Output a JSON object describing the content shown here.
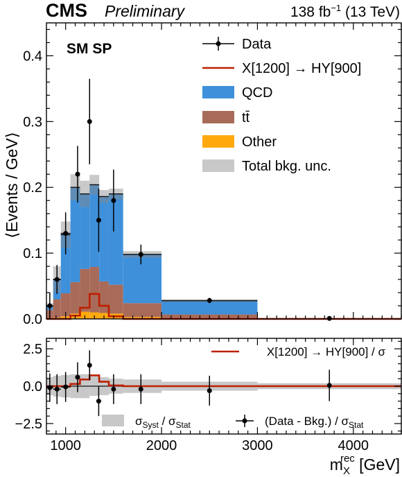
{
  "header": {
    "experiment": "CMS",
    "status": "Preliminary",
    "lumi_value": "138 fb",
    "lumi_exp": "−1",
    "lumi_energy": " (13 TeV)"
  },
  "category_label": "SM SP",
  "colors": {
    "qcd": "#3f90da",
    "ttbar": "#a96b59",
    "other": "#ffa90e",
    "unc": "#c8c8c8",
    "signal": "#bd1f01",
    "data": "#000000"
  },
  "chart_data": [
    {
      "panel": "main",
      "type": "bar",
      "ylabel": "⟨Events / GeV⟩",
      "ylim": [
        0,
        0.45
      ],
      "xlim": [
        800,
        4500
      ],
      "yticks": [
        "0.0",
        "0.1",
        "0.2",
        "0.3",
        "0.4"
      ],
      "bins": [
        [
          800,
          870
        ],
        [
          870,
          950
        ],
        [
          950,
          1050
        ],
        [
          1050,
          1150
        ],
        [
          1150,
          1250
        ],
        [
          1250,
          1350
        ],
        [
          1350,
          1450
        ],
        [
          1450,
          1600
        ],
        [
          1600,
          2000
        ],
        [
          2000,
          3000
        ],
        [
          3000,
          4500
        ]
      ],
      "stack": {
        "other": [
          0.0015,
          0.002,
          0.004,
          0.008,
          0.011,
          0.01,
          0.009,
          0.008,
          0.003,
          0.0008,
          0.0
        ],
        "ttbar": [
          0.012,
          0.028,
          0.035,
          0.048,
          0.065,
          0.069,
          0.048,
          0.044,
          0.021,
          0.006,
          0.0
        ],
        "qcd": [
          0.006,
          0.03,
          0.089,
          0.144,
          0.114,
          0.125,
          0.129,
          0.138,
          0.074,
          0.021,
          0.0004
        ]
      },
      "total_bkg": [
        0.0195,
        0.06,
        0.128,
        0.2,
        0.19,
        0.204,
        0.186,
        0.19,
        0.098,
        0.0278,
        0.0004
      ],
      "bkg_unc": [
        0.004,
        0.02,
        0.02,
        0.02,
        0.02,
        0.015,
        0.01,
        0.008,
        0.005,
        0.002,
        0.0003
      ],
      "signal": [
        0.0,
        0.0,
        0.0,
        0.005,
        0.017,
        0.038,
        0.02,
        0.004,
        0.0,
        0.0,
        0.0
      ],
      "data": {
        "x": [
          835,
          910,
          1000,
          1125,
          1250,
          1345,
          1500,
          1785,
          2500,
          3750
        ],
        "y": [
          0.02,
          0.06,
          0.13,
          0.22,
          0.3,
          0.15,
          0.18,
          0.098,
          0.028,
          0.0008
        ],
        "yerr": [
          0.02,
          0.022,
          0.032,
          0.043,
          0.065,
          0.048,
          0.047,
          0.015,
          0.004,
          0.0008
        ],
        "xerr": [
          35,
          40,
          50,
          25,
          0,
          0,
          0,
          0,
          0,
          0
        ]
      },
      "legend": [
        {
          "kind": "data",
          "label": "Data"
        },
        {
          "kind": "signal",
          "label": "X[1200] → HY[900]"
        },
        {
          "kind": "qcd",
          "label": "QCD"
        },
        {
          "kind": "ttbar",
          "label": "tt̄"
        },
        {
          "kind": "other",
          "label": "Other"
        },
        {
          "kind": "unc",
          "label": "Total bkg. unc."
        }
      ]
    },
    {
      "panel": "ratio",
      "type": "scatter",
      "xlabel": "m",
      "xlabel_sub": "X",
      "xlabel_sup": "rec",
      "xlabel_unit": " [GeV]",
      "ylim": [
        -3.2,
        3.2
      ],
      "xlim": [
        800,
        4500
      ],
      "yticks": [
        "2.5",
        "0.0",
        "−2.5"
      ],
      "xticks": [
        "1000",
        "2000",
        "3000",
        "4000"
      ],
      "xtick_values": [
        1000,
        2000,
        3000,
        4000
      ],
      "syst_band": [
        0.6,
        0.7,
        0.75,
        0.8,
        0.8,
        0.65,
        0.6,
        0.5,
        0.45,
        0.3,
        0.2
      ],
      "signal_ratio": [
        0.0,
        0.0,
        0.0,
        0.15,
        0.45,
        0.72,
        0.3,
        0.05,
        0.0,
        0.0,
        0.0
      ],
      "data": {
        "x": [
          835,
          910,
          1000,
          1125,
          1250,
          1345,
          1500,
          1785,
          2500,
          3750
        ],
        "y": [
          -0.1,
          -0.2,
          -0.05,
          0.6,
          1.4,
          -1.0,
          -0.2,
          -0.2,
          -0.3,
          0.05
        ],
        "yerr": [
          0.95,
          1.0,
          1.0,
          1.0,
          1.0,
          1.0,
          1.0,
          1.0,
          1.0,
          1.05
        ],
        "xerr": [
          35,
          40,
          50,
          25,
          0,
          0,
          0,
          0,
          0,
          0
        ]
      },
      "legend": [
        {
          "kind": "signal",
          "label": "X[1200] → HY[900] / σ"
        },
        {
          "kind": "unc",
          "label": "σ",
          "sub": "Syst",
          "label2": " / σ",
          "sub2": "Stat"
        },
        {
          "kind": "data",
          "label": "(Data - Bkg.) / σ",
          "sub": "Stat"
        }
      ]
    }
  ]
}
